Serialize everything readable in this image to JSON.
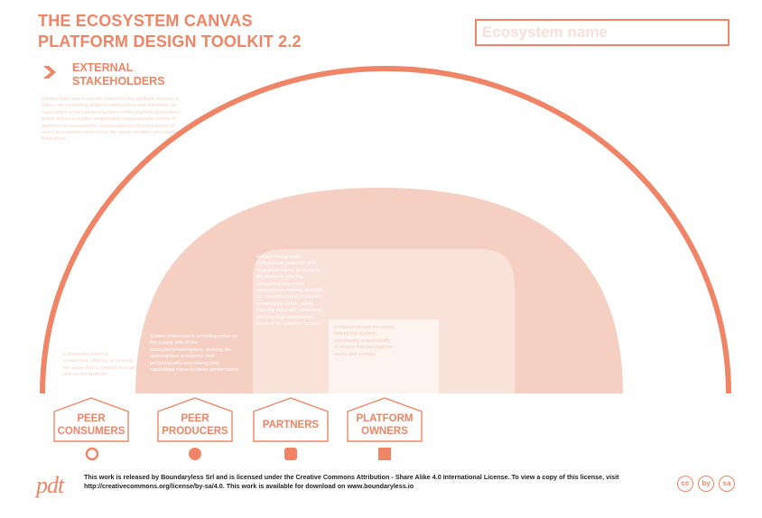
{
  "header": {
    "title_line1": "THE ECOSYSTEM CANVAS",
    "title_line2": "PLATFORM DESIGN TOOLKIT 2.2",
    "ecosystem_name_placeholder": "Ecosystem name"
  },
  "external": {
    "title_line1": "EXTERNAL",
    "title_line2": "STAKEHOLDERS",
    "description": "Entities that have a specific interest in the platform success or failure, as controlling platform externalities and outcomes, or regulating it or its functioning rights in the platform governance; public actors or bodies dealing with regulation and control of platforms or ecosystems, representatives of communities of users and partners involved in the value creation; pre-existing institutions."
  },
  "zones": {
    "peer_consumers_desc": "Entities interested in consuming, utilizing, accessing the value that is created through and on the platform.",
    "peer_producers_desc": "Entities interested in providing value on the supply side of the ecosystem/marketplace, seeking the opportunities to improve their professionality and having their capabilities move to better performance.",
    "partners_desc": "Entities that provide professional, powerful and support services, or invest in the platform, offering complementary value propositions, making possible for consumers and producers to exchange value, acting from the edge with value and services that complement those of the platform owners.",
    "owners_desc": "Entities that own the vision behind the system, opportunity, responsibility to ensure that the platform works and evolves."
  },
  "roles": [
    {
      "line1": "PEER",
      "line2": "CONSUMERS",
      "icon": "hollow-circle-icon"
    },
    {
      "line1": "PEER",
      "line2": "PRODUCERS",
      "icon": "filled-circle-icon"
    },
    {
      "line1": "PARTNERS",
      "line2": "",
      "icon": "rounded-square-icon"
    },
    {
      "line1": "PLATFORM",
      "line2": "OWNERS",
      "icon": "square-icon"
    }
  ],
  "footer": {
    "logo": "pdt",
    "license_line1": "This work is released by Boundaryless Srl and is licensed under the Creative Commons Attribution - Share Alike 4.0 International License. To view a copy of this license, visit",
    "license_line2": "http://creativecommons.org/license/by-sa/4.0. This work is available for download on www.boundaryless.io",
    "cc_badges": [
      "cc",
      "by",
      "sa"
    ]
  },
  "colors": {
    "accent": "#ef8566",
    "outer_fill": "#f5cfc2",
    "middle_fill": "#f9e2da",
    "inner_fill": "#fdf3ef"
  }
}
